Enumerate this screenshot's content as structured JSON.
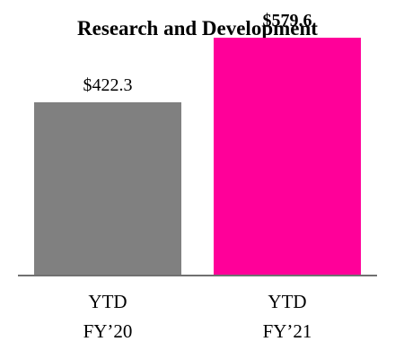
{
  "chart_data": {
    "type": "bar",
    "title": "Research and Development",
    "categories": [
      [
        "YTD",
        "FY’20"
      ],
      [
        "YTD",
        "FY’21"
      ]
    ],
    "values": [
      422.3,
      579.6
    ],
    "value_labels": [
      "$422.3",
      "$579.6"
    ],
    "value_label_bold": [
      false,
      true
    ],
    "bar_colors": [
      "#808080",
      "#FF0099"
    ],
    "ylim": [
      0,
      700
    ],
    "xlabel": "",
    "ylabel": "",
    "grid": false,
    "legend": "none"
  }
}
